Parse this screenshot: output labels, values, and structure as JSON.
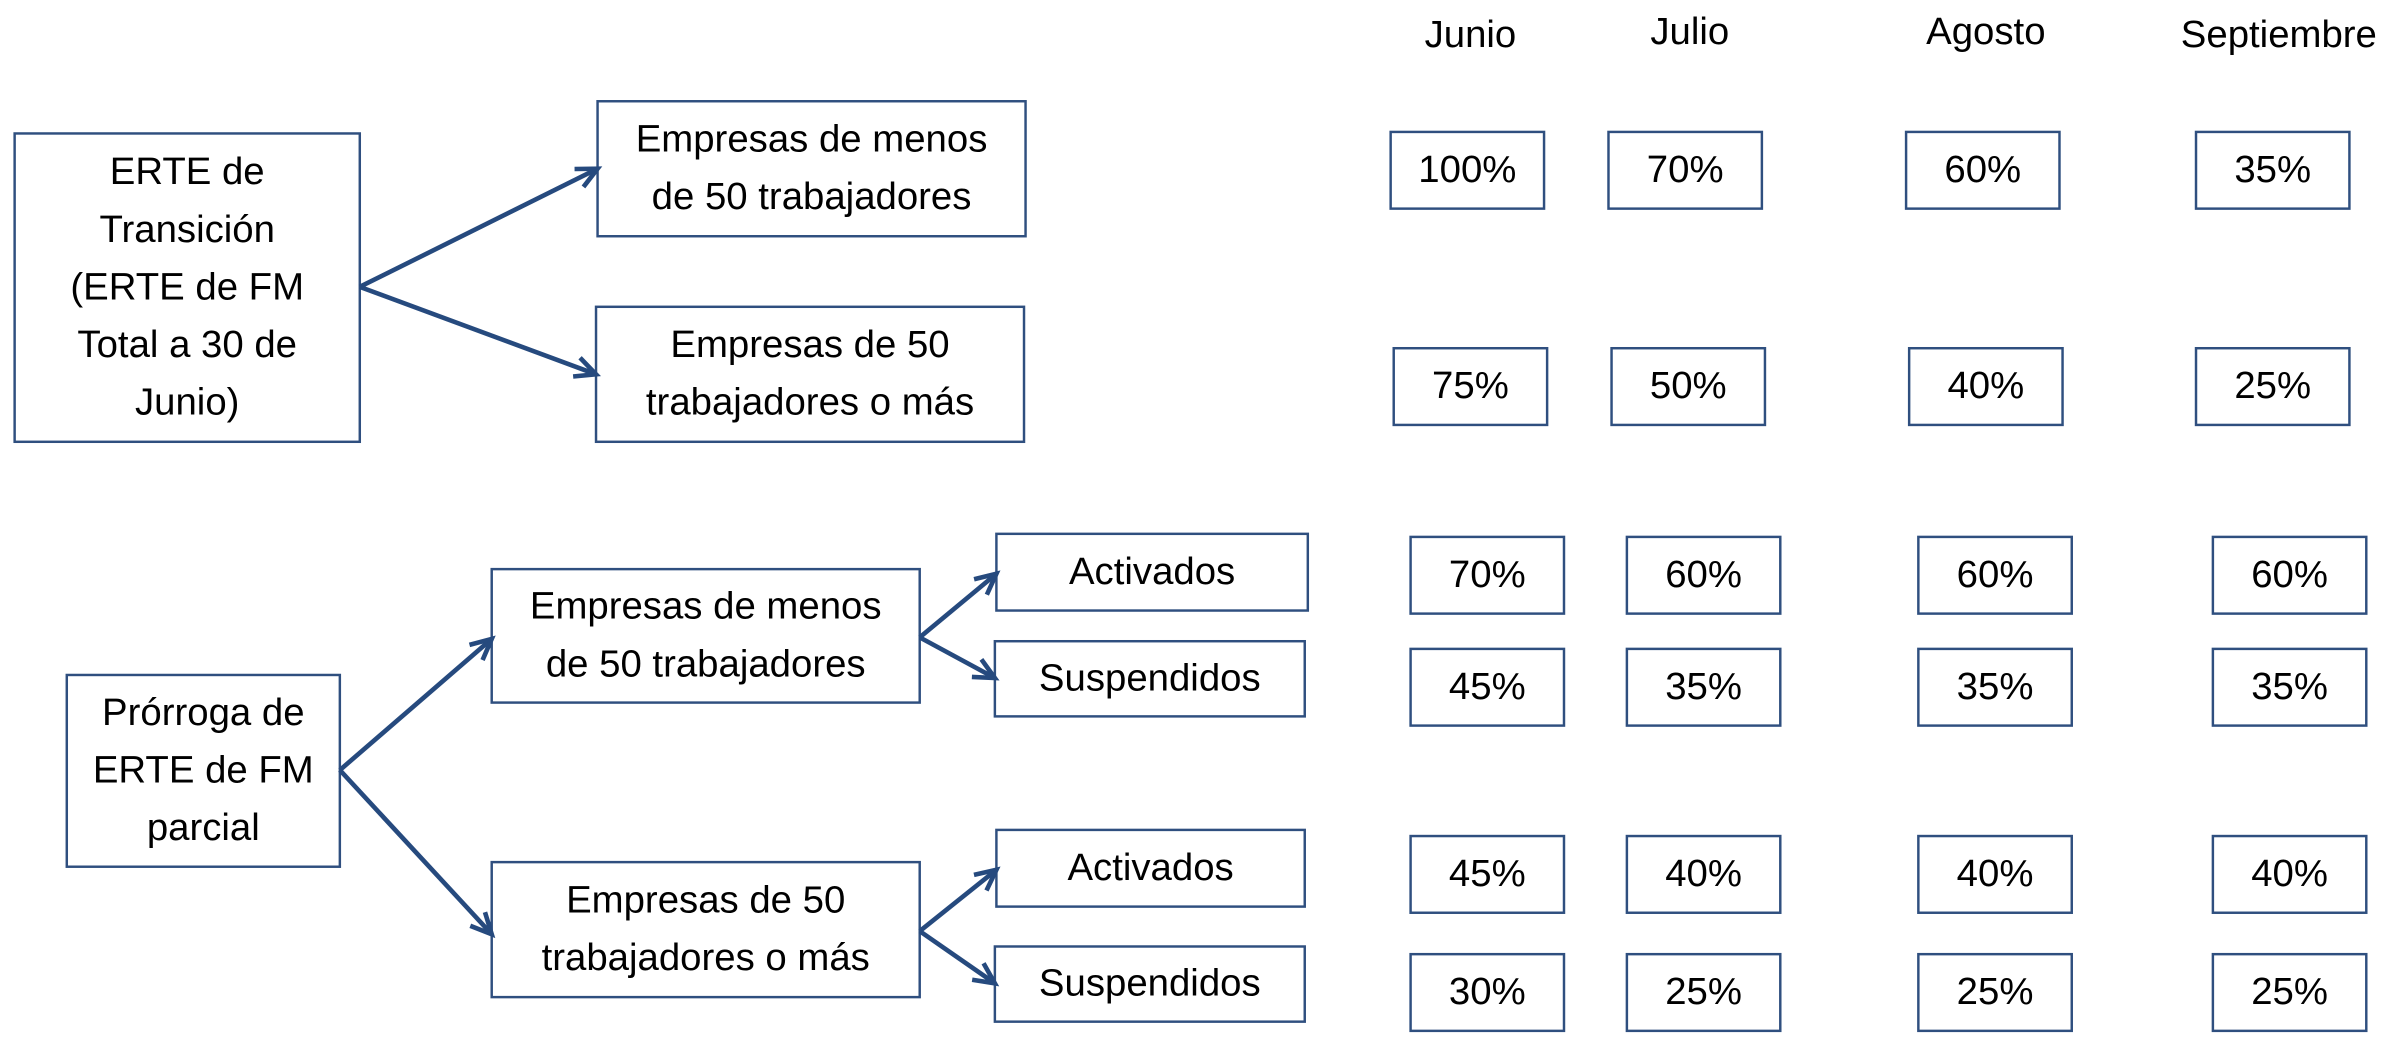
{
  "months": [
    "Junio",
    "Julio",
    "Agosto",
    "Septiembre"
  ],
  "groups": [
    {
      "label": [
        "ERTE de",
        "Transición",
        "(ERTE de FM",
        "Total a 30 de",
        "Junio)"
      ],
      "branches": [
        {
          "label": [
            "Empresas de menos",
            "de 50 trabajadores"
          ],
          "values": [
            "100%",
            "70%",
            "60%",
            "35%"
          ]
        },
        {
          "label": [
            "Empresas de 50",
            "trabajadores o más"
          ],
          "values": [
            "75%",
            "50%",
            "40%",
            "25%"
          ]
        }
      ]
    },
    {
      "label": [
        "Prórroga de",
        "ERTE de FM",
        "parcial"
      ],
      "branches": [
        {
          "label": [
            "Empresas de menos",
            "de 50 trabajadores"
          ],
          "sub": [
            {
              "label": "Activados",
              "values": [
                "70%",
                "60%",
                "60%",
                "60%"
              ]
            },
            {
              "label": "Suspendidos",
              "values": [
                "45%",
                "35%",
                "35%",
                "35%"
              ]
            }
          ]
        },
        {
          "label": [
            "Empresas de 50",
            "trabajadores o más"
          ],
          "sub": [
            {
              "label": "Activados",
              "values": [
                "45%",
                "40%",
                "40%",
                "40%"
              ]
            },
            {
              "label": "Suspendidos",
              "values": [
                "30%",
                "25%",
                "25%",
                "25%"
              ]
            }
          ]
        }
      ]
    }
  ]
}
